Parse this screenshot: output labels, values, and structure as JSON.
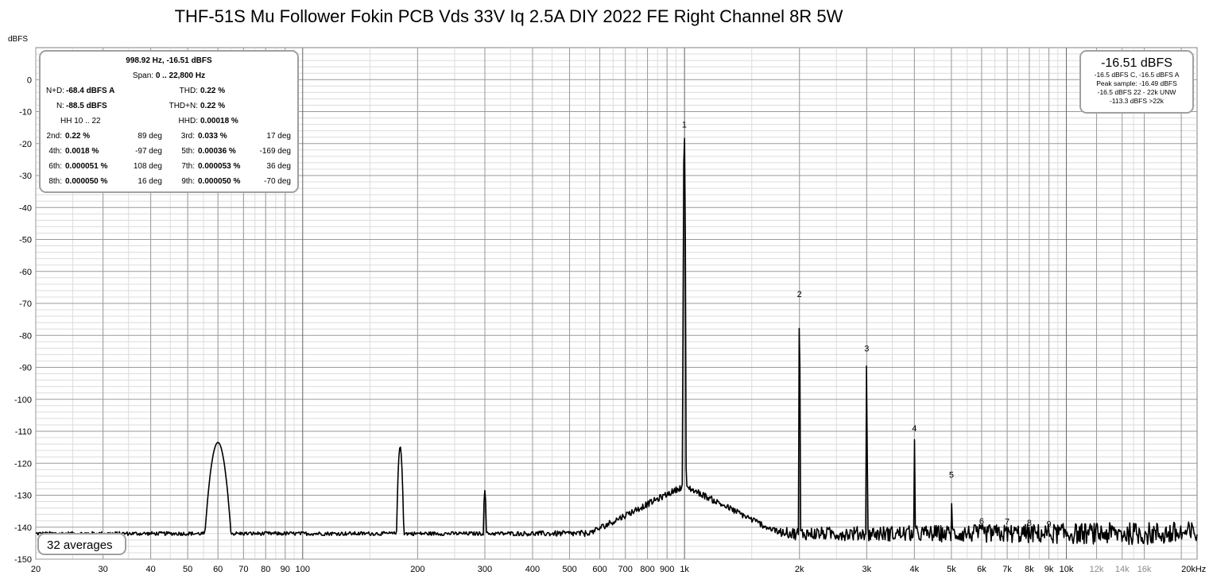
{
  "title": "THF-51S Mu Follower Fokin PCB Vds 33V Iq 2.5A DIY 2022 FE Right Channel 8R 5W",
  "chart_data": {
    "type": "line",
    "title": "THF-51S Mu Follower Fokin PCB Vds 33V Iq 2.5A DIY 2022 FE Right Channel 8R 5W",
    "ylabel": "dBFS",
    "xlabel": "",
    "x_scale": "log",
    "xlim": [
      20,
      22000
    ],
    "ylim": [
      -150,
      10
    ],
    "grid": true,
    "x_tick_labels": [
      "20",
      "30",
      "40",
      "50",
      "60",
      "70",
      "80",
      "90",
      "100",
      "200",
      "300",
      "400",
      "500",
      "600",
      "700",
      "800",
      "900",
      "1k",
      "2k",
      "3k",
      "4k",
      "5k",
      "6k",
      "7k",
      "8k",
      "9k",
      "10k",
      "12k",
      "14k",
      "16k",
      "20kHz"
    ],
    "x_tick_values": [
      20,
      30,
      40,
      50,
      60,
      70,
      80,
      90,
      100,
      200,
      300,
      400,
      500,
      600,
      700,
      800,
      900,
      1000,
      2000,
      3000,
      4000,
      5000,
      6000,
      7000,
      8000,
      9000,
      10000,
      12000,
      14000,
      16000,
      20000
    ],
    "y_tick_labels": [
      "0",
      "-10",
      "-20",
      "-30",
      "-40",
      "-50",
      "-60",
      "-70",
      "-80",
      "-90",
      "-100",
      "-110",
      "-120",
      "-130",
      "-140",
      "-150"
    ],
    "y_tick_values": [
      0,
      -10,
      -20,
      -30,
      -40,
      -50,
      -60,
      -70,
      -80,
      -90,
      -100,
      -110,
      -120,
      -130,
      -140,
      -150
    ],
    "noise_floor_dbfs": -142,
    "peaks": [
      {
        "freq": 60,
        "dbfs": -113.5,
        "width": 0.035
      },
      {
        "freq": 180,
        "dbfs": -114.8,
        "width": 0.01
      },
      {
        "freq": 300,
        "dbfs": -128.5,
        "width": 0.006
      },
      {
        "freq": 998.92,
        "dbfs": -16.51,
        "width": 0.0025
      },
      {
        "freq": 2000,
        "dbfs": -69.5,
        "width": 0.0015
      },
      {
        "freq": 3000,
        "dbfs": -86.5,
        "width": 0.0015
      },
      {
        "freq": 4000,
        "dbfs": -111.5,
        "width": 0.0015
      },
      {
        "freq": 5000,
        "dbfs": -126.0,
        "width": 0.0015
      }
    ],
    "harmonic_markers": [
      {
        "label": "1",
        "freq": 998.92,
        "dbfs": -16.51
      },
      {
        "label": "2",
        "freq": 2000,
        "dbfs": -69.5
      },
      {
        "label": "3",
        "freq": 3000,
        "dbfs": -86.5
      },
      {
        "label": "4",
        "freq": 4000,
        "dbfs": -111.5
      },
      {
        "label": "5",
        "freq": 5000,
        "dbfs": -126.0
      },
      {
        "label": "6",
        "freq": 6000,
        "dbfs": -140.5
      },
      {
        "label": "7",
        "freq": 7000,
        "dbfs": -140.7
      },
      {
        "label": "8",
        "freq": 8000,
        "dbfs": -141.0
      },
      {
        "label": "9",
        "freq": 9000,
        "dbfs": -141.4
      }
    ]
  },
  "info_box": {
    "cursor": "998.92 Hz, -16.51 dBFS",
    "span_label": "Span:",
    "span_value": "0 .. 22,800 Hz",
    "nd_label": "N+D:",
    "nd_value": "-68.4 dBFS A",
    "thd_label": "THD:",
    "thd_value": "0.22 %",
    "n_label": "N:",
    "n_value": "-88.5 dBFS",
    "thdn_label": "THD+N:",
    "thdn_value": "0.22 %",
    "hh_label": "HH 10 .. 22",
    "hhd_label": "HHD:",
    "hhd_value": "0.00018 %",
    "rows": [
      {
        "l1": "2nd:",
        "v1": "0.22 %",
        "d1": "89 deg",
        "l2": "3rd:",
        "v2": "0.033 %",
        "d2": "17 deg"
      },
      {
        "l1": "4th:",
        "v1": "0.0018 %",
        "d1": "-97 deg",
        "l2": "5th:",
        "v2": "0.00036 %",
        "d2": "-169 deg"
      },
      {
        "l1": "6th:",
        "v1": "0.000051 %",
        "d1": "108 deg",
        "l2": "7th:",
        "v2": "0.000053 %",
        "d2": "36 deg"
      },
      {
        "l1": "8th:",
        "v1": "0.000050 %",
        "d1": "16 deg",
        "l2": "9th:",
        "v2": "0.000050 %",
        "d2": "-70 deg"
      }
    ]
  },
  "level_box": {
    "main": "-16.51 dBFS",
    "line1": "-16.5 dBFS C, -16.5 dBFS A",
    "line2": "Peak sample: -16.49 dBFS",
    "line3": "-16.5 dBFS 22 - 22k UNW",
    "line4": "-113.3 dBFS >22k"
  },
  "averages_label": "32 averages",
  "colors": {
    "trace": "#000000",
    "grid_major": "#9a9a9a",
    "grid_minor": "#dcdcdc",
    "box_border": "#a0a0a0"
  }
}
